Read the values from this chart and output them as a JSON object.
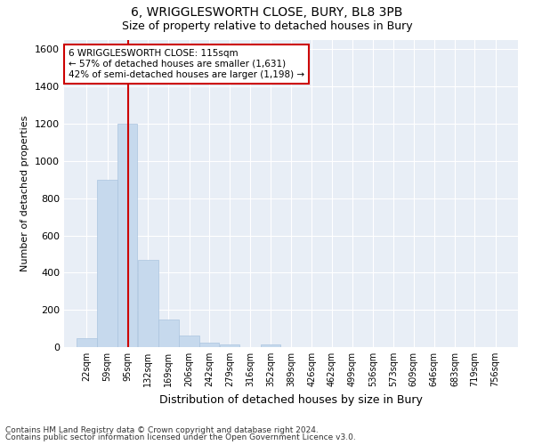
{
  "title": "6, WRIGGLESWORTH CLOSE, BURY, BL8 3PB",
  "subtitle": "Size of property relative to detached houses in Bury",
  "xlabel": "Distribution of detached houses by size in Bury",
  "ylabel": "Number of detached properties",
  "footnote1": "Contains HM Land Registry data © Crown copyright and database right 2024.",
  "footnote2": "Contains public sector information licensed under the Open Government Licence v3.0.",
  "annotation_line1": "6 WRIGGLESWORTH CLOSE: 115sqm",
  "annotation_line2": "← 57% of detached houses are smaller (1,631)",
  "annotation_line3": "42% of semi-detached houses are larger (1,198) →",
  "bar_color": "#c6d9ed",
  "bar_edge_color": "#aac4df",
  "vline_color": "#cc0000",
  "vline_x": 115,
  "plot_bg_color": "#e8eef6",
  "grid_color": "#ffffff",
  "categories": [
    "22sqm",
    "59sqm",
    "95sqm",
    "132sqm",
    "169sqm",
    "206sqm",
    "242sqm",
    "279sqm",
    "316sqm",
    "352sqm",
    "389sqm",
    "426sqm",
    "462sqm",
    "499sqm",
    "536sqm",
    "573sqm",
    "609sqm",
    "646sqm",
    "683sqm",
    "719sqm",
    "756sqm"
  ],
  "bin_left_edges": [
    22,
    59,
    95,
    132,
    169,
    206,
    242,
    279,
    316,
    352,
    389,
    426,
    462,
    499,
    536,
    573,
    609,
    646,
    683,
    719,
    756
  ],
  "bin_width": 37,
  "values": [
    50,
    900,
    1200,
    470,
    150,
    60,
    25,
    15,
    0,
    15,
    0,
    0,
    0,
    0,
    0,
    0,
    0,
    0,
    0,
    0,
    0
  ],
  "ylim": [
    0,
    1650
  ],
  "yticks": [
    0,
    200,
    400,
    600,
    800,
    1000,
    1200,
    1400,
    1600
  ]
}
